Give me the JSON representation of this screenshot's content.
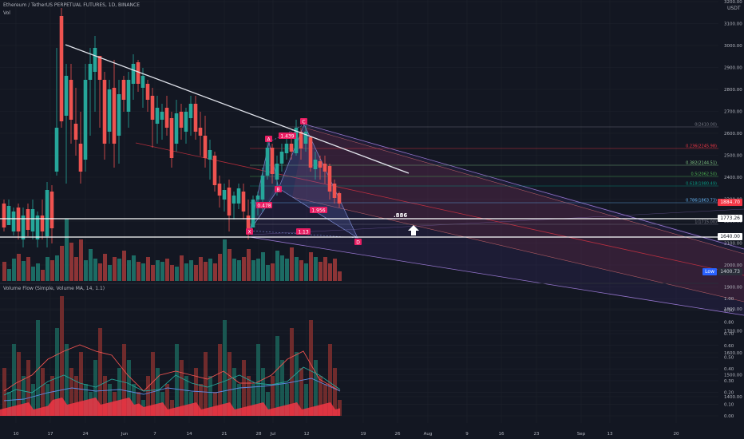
{
  "header": {
    "title": "Ethereum / TetherUS PERPETUAL FUTURES, 1D, BINANCE",
    "vol_label": "Vol",
    "indicator_label": "Volume Flow (Simple, Volume MA, 14, 1.1)"
  },
  "axis": {
    "currency": "USDT",
    "price_ticks": [
      "3200.00",
      "3100.00",
      "3000.00",
      "2900.00",
      "2800.00",
      "2700.00",
      "2600.00",
      "2500.00",
      "2400.00",
      "2300.00",
      "2200.00",
      "2100.00",
      "2000.00",
      "1900.00",
      "1800.00",
      "1700.00",
      "1600.00",
      "1500.00",
      "1400.00"
    ],
    "indicator_ticks": [
      "1.00",
      "0.90",
      "0.80",
      "0.70",
      "0.60",
      "0.50",
      "0.40",
      "0.30",
      "0.20",
      "0.10",
      "0.00"
    ],
    "time_labels": [
      "10",
      "17",
      "24",
      "Jun",
      "7",
      "14",
      "21",
      "28",
      "Jul",
      "12",
      "19",
      "26",
      "Aug",
      "9",
      "16",
      "23",
      "Sep",
      "13",
      "20"
    ]
  },
  "price_tags": {
    "current": "1884.70",
    "level1": "1773.26",
    "level2": "1640.00",
    "low_label": "Low",
    "low_value": "1400.73"
  },
  "fib_levels": [
    {
      "label": "0(2410.00)",
      "color": "#787b86"
    },
    {
      "label": "0.236(2245.98)",
      "color": "#f23645"
    },
    {
      "label": "0.382(2144.51)",
      "color": "#81c784"
    },
    {
      "label": "0.5(2062.50)",
      "color": "#4caf50"
    },
    {
      "label": "0.618(1980.49)",
      "color": "#089981"
    },
    {
      "label": "0.786(1863.73)",
      "color": "#64b5f6"
    },
    {
      "label": "1(1715.00)",
      "color": "#787b86"
    }
  ],
  "pattern": {
    "points": {
      "x": "X",
      "a": "A",
      "b": "B",
      "c": "C",
      "d": "D"
    },
    "ratios": {
      "xa_b": "0.478",
      "ab_c": "1.439",
      "bc_d": "1.956",
      "xa_d": "1.13"
    },
    "retracement": ".886"
  },
  "icons": {
    "arrow": "up-arrow-icon"
  }
}
